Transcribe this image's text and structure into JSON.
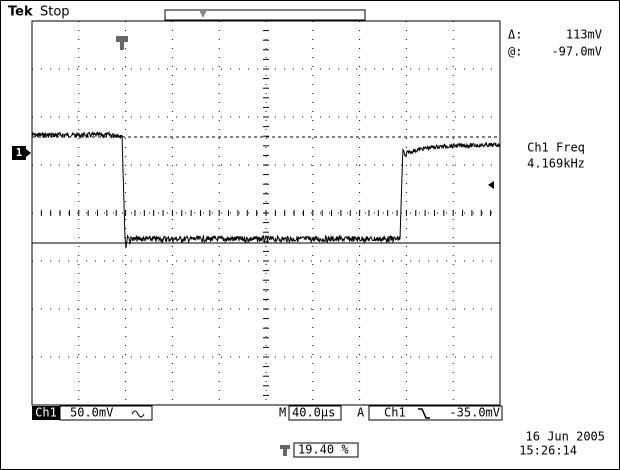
{
  "header": {
    "brand": "Tek",
    "status": "Stop"
  },
  "cursor": {
    "delta_label": "Δ:",
    "delta": "113mV",
    "at_label": "@:",
    "at": "-97.0mV"
  },
  "measurement": {
    "label": "Ch1 Freq",
    "value": "4.169kHz"
  },
  "channel_marker": "1",
  "footer": {
    "channel": "Ch1",
    "scale": "50.0mV",
    "timebase_label": "M",
    "timebase": "40.0µs",
    "trigger_label": "A",
    "trigger_source": "Ch1",
    "trigger_level": "-35.0mV",
    "date": "16 Jun 2005",
    "time": "15:26:14",
    "position": "19.40 %"
  }
}
